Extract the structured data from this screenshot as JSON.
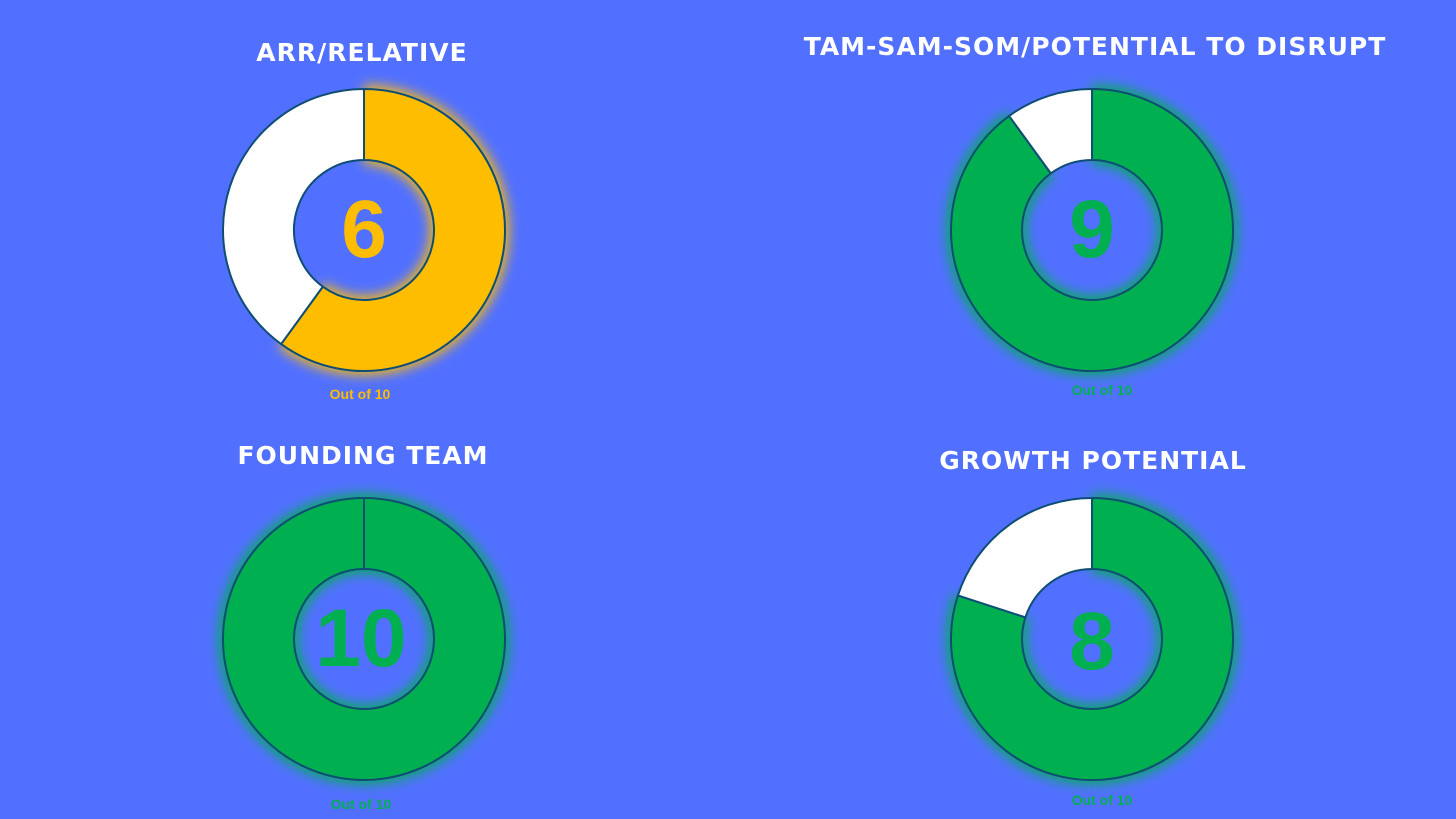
{
  "chart_data": [
    {
      "type": "pie",
      "variant": "donut",
      "title": "ARR/RELATIVE",
      "score_label": "6",
      "caption": "Out of 10",
      "max": 10,
      "slices": [
        {
          "label": "score",
          "value": 6,
          "color": "#FFBD00"
        },
        {
          "label": "remaining",
          "value": 4,
          "color": "#FFFFFF"
        }
      ],
      "accent_color": "#FFBD00",
      "outline_color": "#0E4D74"
    },
    {
      "type": "pie",
      "variant": "donut",
      "title": "TAM-SAM-SOM/POTENTIAL TO DISRUPT",
      "score_label": "9",
      "caption": "Out of 10",
      "max": 10,
      "slices": [
        {
          "label": "score",
          "value": 9,
          "color": "#00B050"
        },
        {
          "label": "remaining",
          "value": 1,
          "color": "#FFFFFF"
        }
      ],
      "accent_color": "#00B050",
      "outline_color": "#0E4D74"
    },
    {
      "type": "pie",
      "variant": "donut",
      "title": "FOUNDING TEAM",
      "score_label": "10",
      "caption": "Out of 10",
      "max": 10,
      "slices": [
        {
          "label": "score",
          "value": 10,
          "color": "#00B050"
        },
        {
          "label": "remaining",
          "value": 0,
          "color": "#FFFFFF"
        }
      ],
      "accent_color": "#00B050",
      "outline_color": "#0E4D74"
    },
    {
      "type": "pie",
      "variant": "donut",
      "title": "GROWTH POTENTIAL",
      "score_label": "8",
      "caption": "Out of 10",
      "max": 10,
      "slices": [
        {
          "label": "score",
          "value": 8,
          "color": "#00B050"
        },
        {
          "label": "remaining",
          "value": 2,
          "color": "#FFFFFF"
        }
      ],
      "accent_color": "#00B050",
      "outline_color": "#0E4D74"
    }
  ],
  "background_color": "#5170FF"
}
